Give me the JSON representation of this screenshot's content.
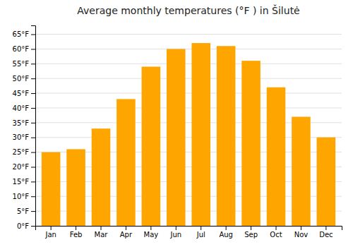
{
  "chart_data": {
    "type": "bar",
    "title": "Average monthly temperatures (°F ) in Šilutė",
    "categories": [
      "Jan",
      "Feb",
      "Mar",
      "Apr",
      "May",
      "Jun",
      "Jul",
      "Aug",
      "Sep",
      "Oct",
      "Nov",
      "Dec"
    ],
    "values": [
      25,
      26,
      33,
      43,
      54,
      60,
      62,
      61,
      56,
      47,
      37,
      30
    ],
    "color": "#FFA500",
    "ylim": [
      0,
      68
    ],
    "yticks": [
      {
        "value": 0,
        "label": "0°F"
      },
      {
        "value": 5,
        "label": "5°F"
      },
      {
        "value": 10,
        "label": "10°F"
      },
      {
        "value": 15,
        "label": "15°F"
      },
      {
        "value": 20,
        "label": "20°F"
      },
      {
        "value": 25,
        "label": "25°F"
      },
      {
        "value": 30,
        "label": "30°F"
      },
      {
        "value": 35,
        "label": "35°F"
      },
      {
        "value": 40,
        "label": "40°F"
      },
      {
        "value": 45,
        "label": "45°F"
      },
      {
        "value": 50,
        "label": "50°F"
      },
      {
        "value": 55,
        "label": "55°F"
      },
      {
        "value": 60,
        "label": "60°F"
      },
      {
        "value": 65,
        "label": "65°F"
      }
    ],
    "grid": true
  }
}
